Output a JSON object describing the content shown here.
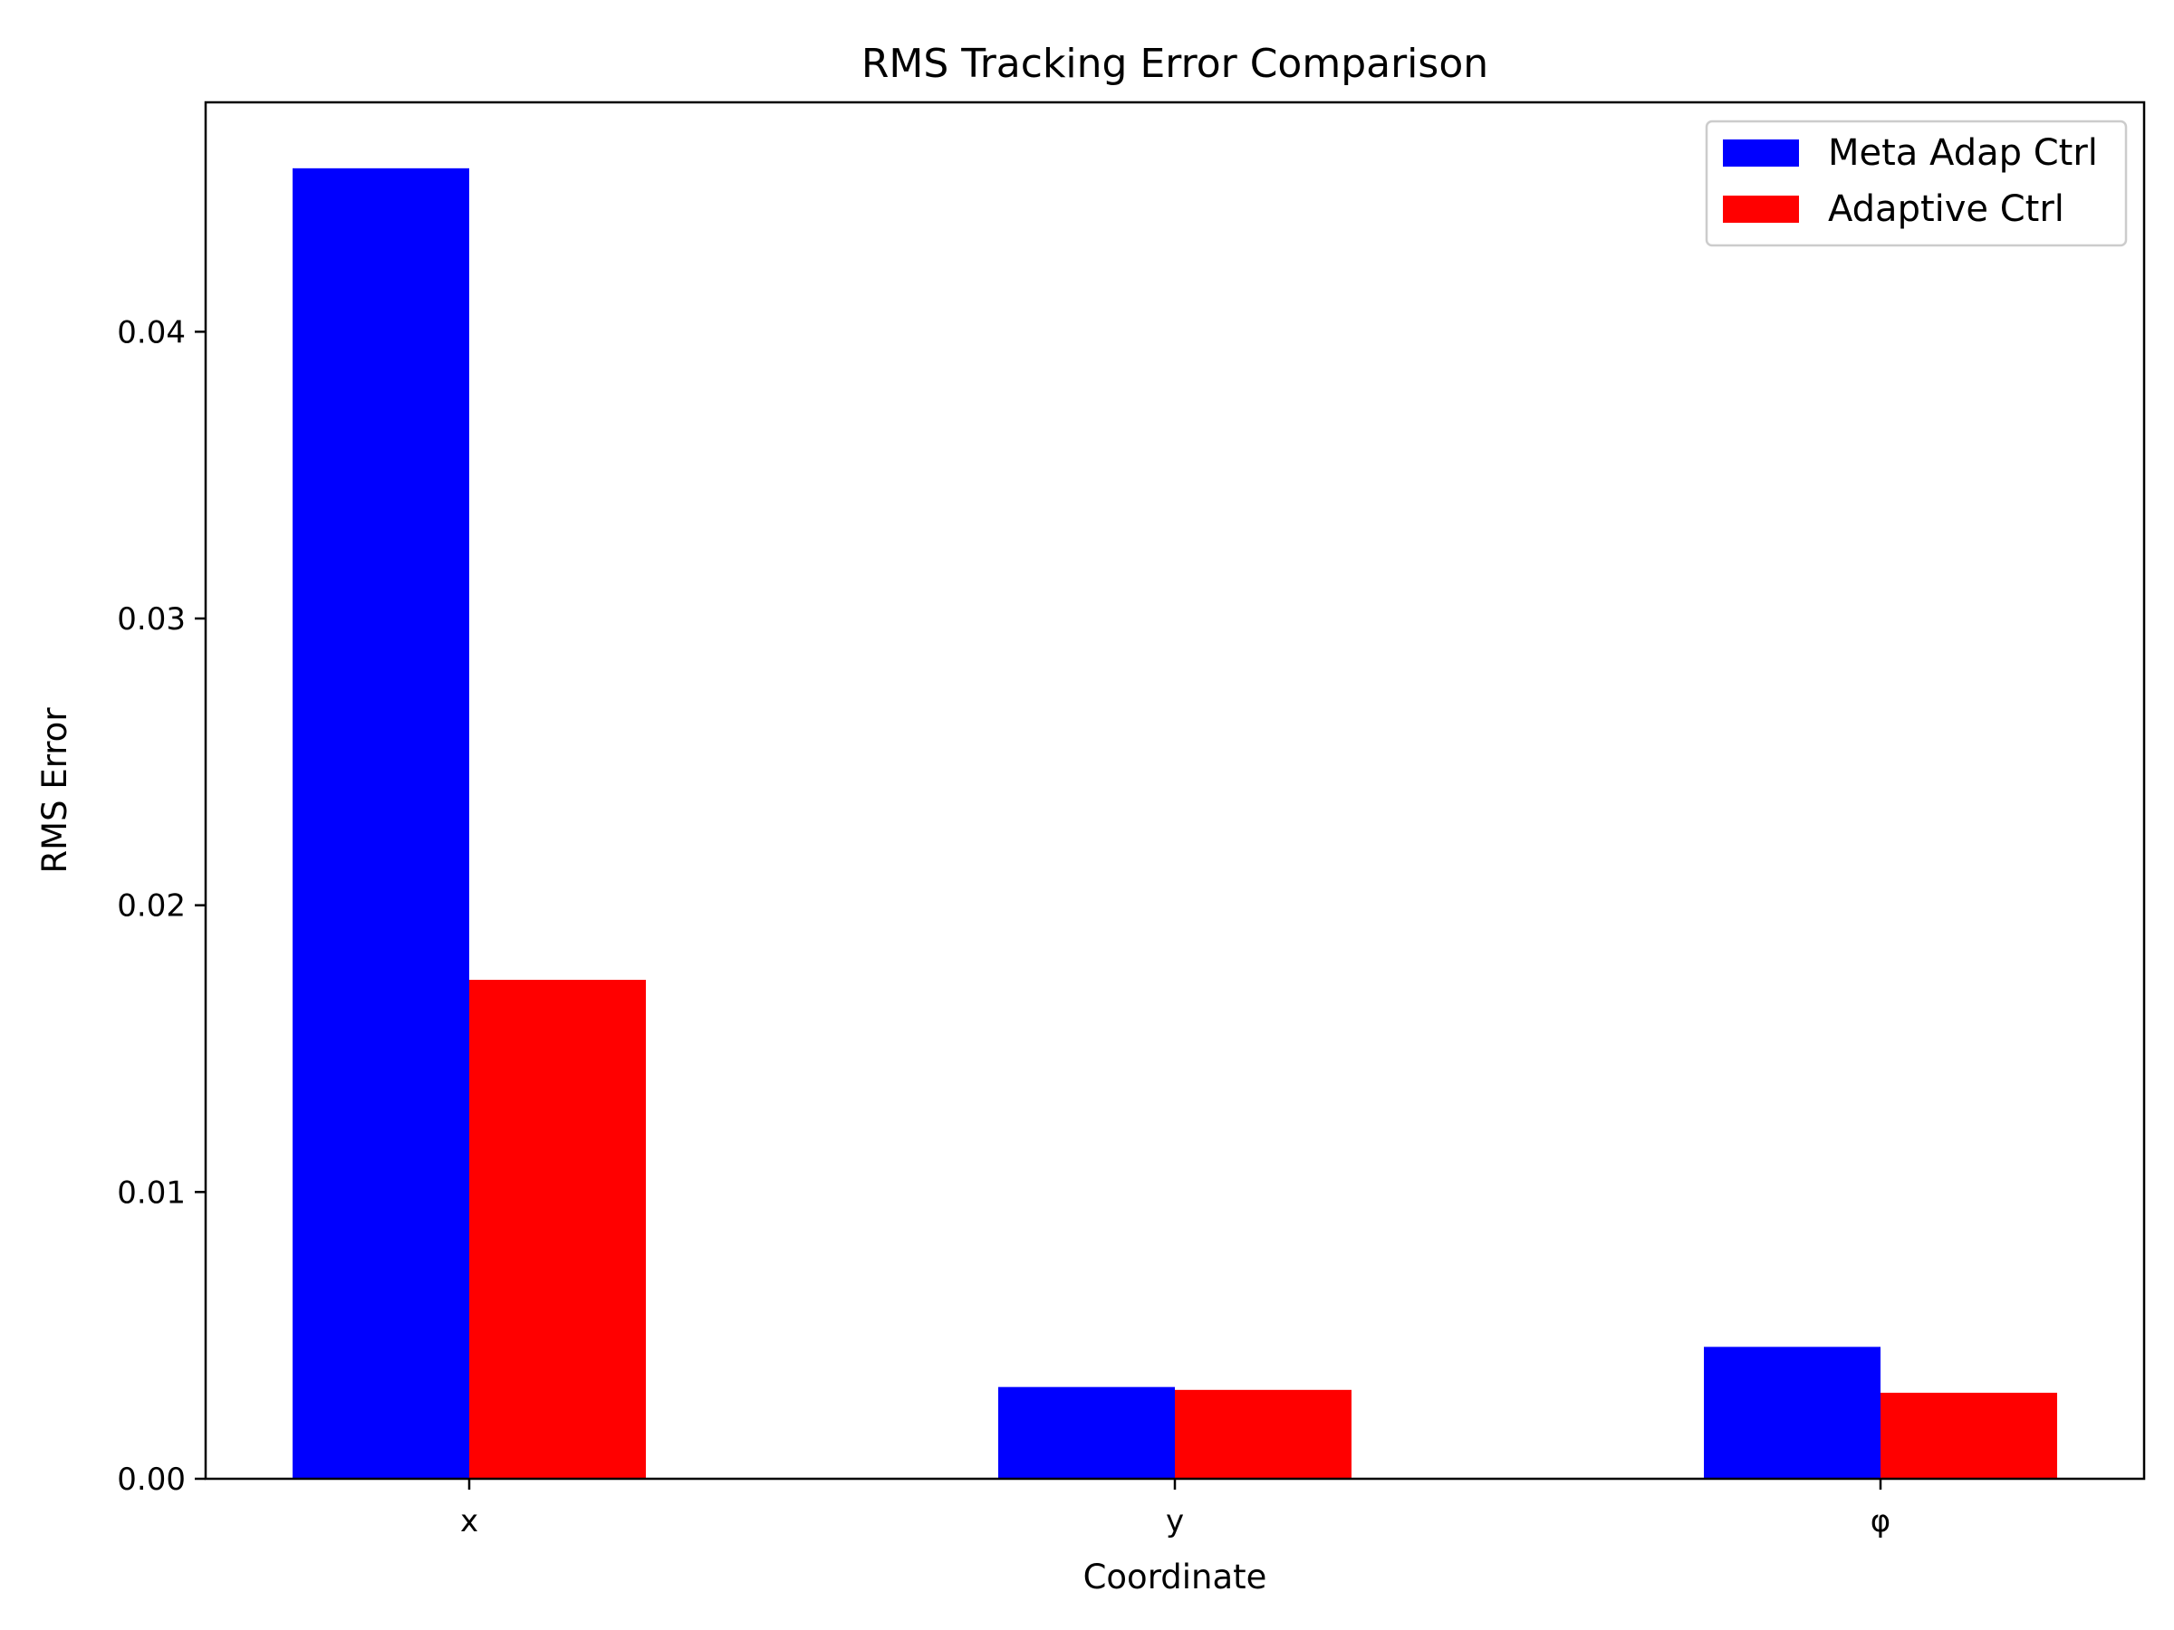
{
  "chart_data": {
    "type": "bar",
    "title": "RMS Tracking Error Comparison",
    "xlabel": "Coordinate",
    "ylabel": "RMS Error",
    "categories": [
      "x",
      "y",
      "φ"
    ],
    "series": [
      {
        "name": "Meta Adap Ctrl",
        "color": "#0000ff",
        "values": [
          0.0457,
          0.0032,
          0.0046
        ]
      },
      {
        "name": "Adaptive Ctrl",
        "color": "#ff0000",
        "values": [
          0.0174,
          0.0031,
          0.003
        ]
      }
    ],
    "ylim": [
      0,
      0.048
    ],
    "yticks": [
      "0.00",
      "0.01",
      "0.02",
      "0.03",
      "0.04"
    ],
    "legend": "top-right",
    "grid": false
  }
}
